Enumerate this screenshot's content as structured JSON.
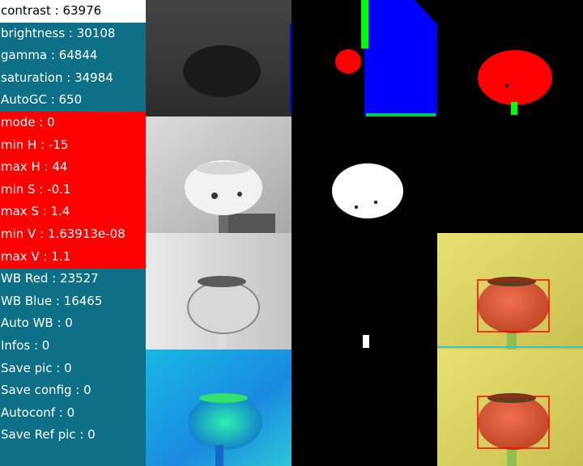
{
  "settings_panel": {
    "rows": [
      {
        "label": "contrast : 63976"
      },
      {
        "label": "brightness : 30108"
      },
      {
        "label": "gamma : 64844"
      },
      {
        "label": "saturation : 34984"
      },
      {
        "label": "AutoGC : 650"
      },
      {
        "label": "mode : 0"
      },
      {
        "label": "min H : -15"
      },
      {
        "label": "max H : 44"
      },
      {
        "label": "min S : -0.1"
      },
      {
        "label": "max S : 1.4"
      },
      {
        "label": "min V : 1.63913e-08"
      },
      {
        "label": "max V : 1.1"
      },
      {
        "label": "WB Red : 23527"
      },
      {
        "label": "WB Blue : 16465"
      },
      {
        "label": "Auto WB : 0"
      },
      {
        "label": "Infos : 0"
      },
      {
        "label": "Save pic : 0"
      },
      {
        "label": "Save config : 0"
      },
      {
        "label": "Autoconf : 0"
      },
      {
        "label": "Save Ref pic : 0"
      }
    ],
    "selected_index": 0
  },
  "colors": {
    "panel_bg": "#0e7086",
    "hsv_group_bg": "#ff0000",
    "selected_bg": "#ffffff",
    "text": "#ffffff",
    "mask_red": "#ff0000",
    "mask_blue": "#0000ff",
    "mask_green": "#00ff00",
    "detection_box": "#ff0000"
  },
  "views": {
    "col1": [
      "grayscale-dark-view",
      "grayscale-light-view",
      "grayscale-contrast-view",
      "hue-colormap-view"
    ],
    "col2": [
      "segmentation-color-mask",
      "white-blob-mask",
      "small-blob-mask",
      "black-empty-view"
    ],
    "col3": [
      "red-object-mask",
      "black-empty-view",
      "detection-view-top",
      "detection-view-bottom"
    ]
  }
}
